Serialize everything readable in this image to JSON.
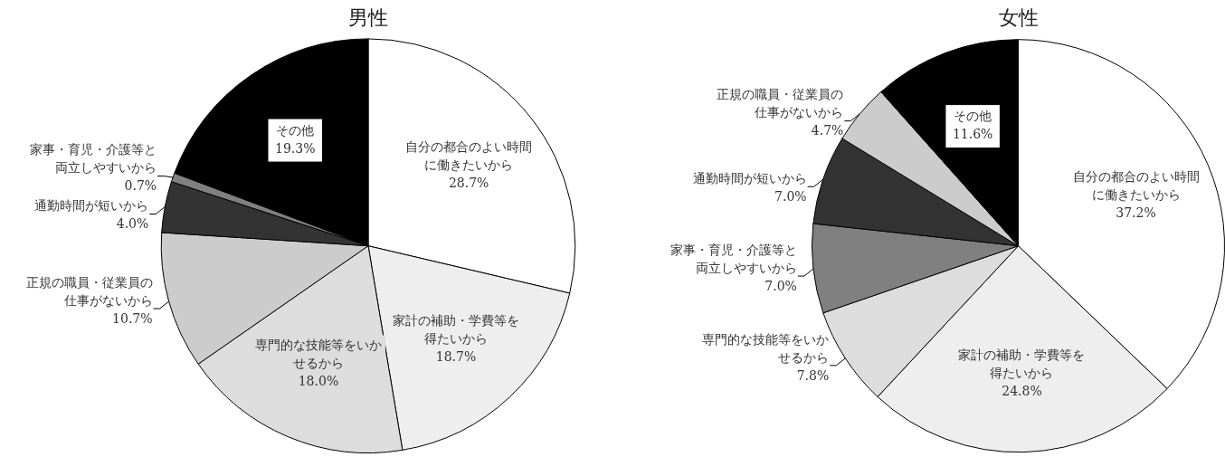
{
  "chart_data": [
    {
      "type": "pie",
      "title": "男性",
      "categories": [
        "自分の都合のよい時間に働きたいから",
        "家計の補助・学費等を得たいから",
        "専門的な技能等をいかせるから",
        "正規の職員・従業員の仕事がないから",
        "通勤時間が短いから",
        "家事・育児・介護等と両立しやすいから",
        "その他"
      ],
      "values": [
        28.7,
        18.7,
        18.0,
        10.7,
        4.0,
        0.7,
        19.3
      ],
      "value_labels": [
        "28.7%",
        "18.7%",
        "18.0%",
        "10.7%",
        "4.0%",
        "0.7%",
        "19.3%"
      ],
      "colors": [
        "#ffffff",
        "#eeeeee",
        "#dddddd",
        "#cccccc",
        "#333333",
        "#808080",
        "#000000"
      ],
      "legend": false
    },
    {
      "type": "pie",
      "title": "女性",
      "categories": [
        "自分の都合のよい時間に働きたいから",
        "家計の補助・学費等を得たいから",
        "専門的な技能等をいかせるから",
        "家事・育児・介護等と両立しやすいから",
        "通勤時間が短いから",
        "正規の職員・従業員の仕事がないから",
        "その他"
      ],
      "values": [
        37.2,
        24.8,
        7.8,
        7.0,
        7.0,
        4.7,
        11.6
      ],
      "value_labels": [
        "37.2%",
        "24.8%",
        "7.8%",
        "7.0%",
        "7.0%",
        "4.7%",
        "11.6%"
      ],
      "colors": [
        "#ffffff",
        "#eeeeee",
        "#dddddd",
        "#808080",
        "#333333",
        "#cccccc",
        "#000000"
      ],
      "legend": false
    }
  ]
}
